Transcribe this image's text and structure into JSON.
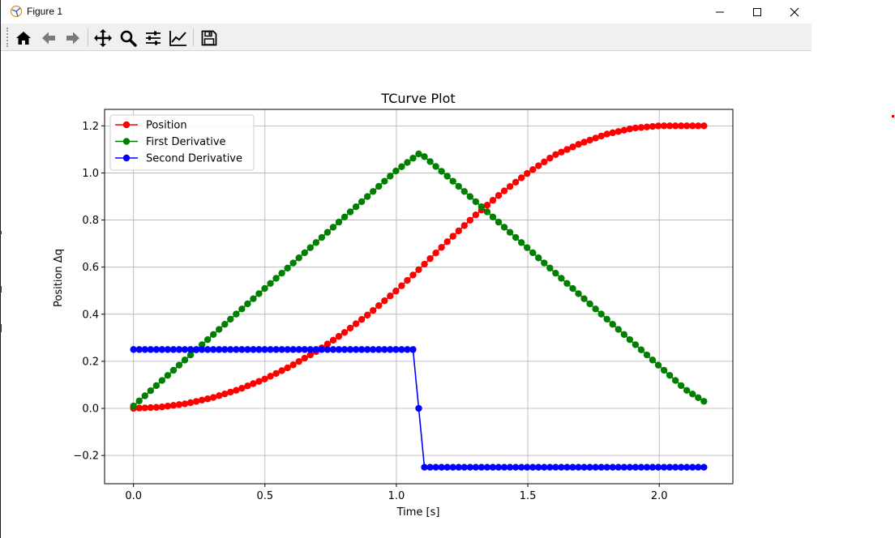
{
  "window": {
    "title": "Figure 1"
  },
  "toolbar": {
    "icons": [
      "home-icon",
      "back-arrow-icon",
      "forward-arrow-icon",
      "pan-icon",
      "zoom-icon",
      "configure-subplots-icon",
      "edit-axis-icon",
      "save-icon"
    ]
  },
  "colors": {
    "position": "#ff0000",
    "first_derivative": "#008000",
    "second_derivative": "#0000ff",
    "grid": "#b0b0b0"
  },
  "chart_data": {
    "type": "line",
    "title": "TCurve Plot",
    "xlabel": "Time [s]",
    "ylabel": "Position Δq",
    "xlim": [
      -0.11,
      2.28
    ],
    "ylim": [
      -0.32,
      1.27
    ],
    "xticks": [
      0.0,
      0.5,
      1.0,
      1.5,
      2.0
    ],
    "xtick_labels": [
      "0.0",
      "0.5",
      "1.0",
      "1.5",
      "2.0"
    ],
    "yticks": [
      -0.2,
      0.0,
      0.2,
      0.4,
      0.6,
      0.8,
      1.0,
      1.2
    ],
    "ytick_labels": [
      "−0.2",
      "0.0",
      "0.2",
      "0.4",
      "0.6",
      "0.8",
      "1.0",
      "1.2"
    ],
    "grid": true,
    "legend_position": "upper left",
    "series": [
      {
        "name": "Position",
        "color": "#ff0000",
        "x": [
          0.0,
          0.1,
          0.2,
          0.3,
          0.4,
          0.5,
          0.6,
          0.7,
          0.8,
          0.9,
          1.0,
          1.1,
          1.2,
          1.3,
          1.4,
          1.5,
          1.6,
          1.7,
          1.8,
          1.9,
          2.0,
          2.1,
          2.17
        ],
        "y": [
          0.0,
          0.005,
          0.02,
          0.045,
          0.08,
          0.125,
          0.18,
          0.245,
          0.32,
          0.405,
          0.5,
          0.605,
          0.715,
          0.82,
          0.915,
          1.0,
          1.075,
          1.125,
          1.165,
          1.19,
          1.2,
          1.2,
          1.2
        ]
      },
      {
        "name": "First Derivative",
        "color": "#008000",
        "x": [
          0.0,
          0.1,
          0.2,
          0.3,
          0.4,
          0.5,
          0.6,
          0.7,
          0.8,
          0.9,
          1.0,
          1.09,
          1.2,
          1.3,
          1.4,
          1.5,
          1.6,
          1.7,
          1.8,
          1.9,
          2.0,
          2.1,
          2.17
        ],
        "y": [
          0.01,
          0.11,
          0.21,
          0.31,
          0.41,
          0.51,
          0.61,
          0.71,
          0.81,
          0.91,
          1.01,
          1.085,
          0.98,
          0.88,
          0.78,
          0.68,
          0.58,
          0.48,
          0.38,
          0.28,
          0.18,
          0.08,
          0.03
        ]
      },
      {
        "name": "Second Derivative",
        "color": "#0000ff",
        "x": [
          0.0,
          0.2,
          0.4,
          0.6,
          0.8,
          1.0,
          1.08,
          1.095,
          1.11,
          1.3,
          1.5,
          1.7,
          1.9,
          2.1,
          2.17
        ],
        "y": [
          0.25,
          0.25,
          0.25,
          0.25,
          0.25,
          0.25,
          0.25,
          0.0,
          -0.25,
          -0.25,
          -0.25,
          -0.25,
          -0.25,
          -0.25,
          -0.25
        ]
      }
    ]
  }
}
